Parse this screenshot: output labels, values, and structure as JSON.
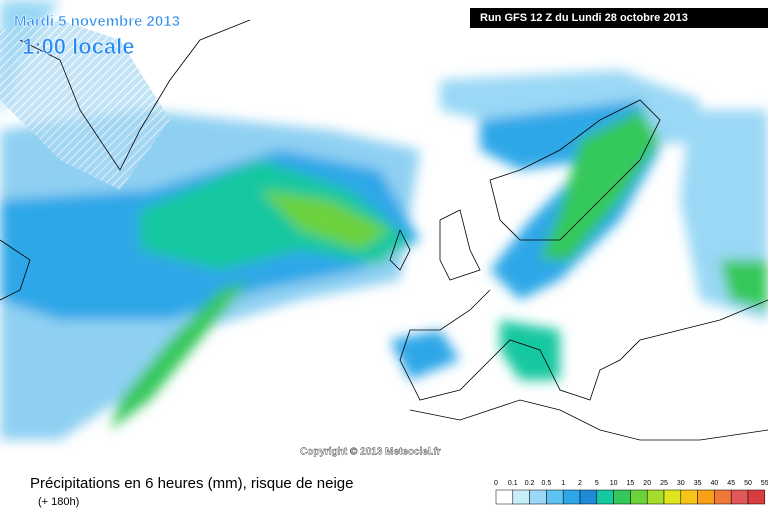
{
  "header": {
    "date": "Mardi 5 novembre 2013",
    "time": "1:00 locale",
    "run": "Run GFS 12 Z du Lundi 28 octobre 2013"
  },
  "copyright": "Copyright © 2013 Meteociel.fr",
  "legend": {
    "title": "Précipitations en 6 heures (mm), risque de neige",
    "lead": "(+ 180h)",
    "labels": [
      0,
      0.1,
      0.2,
      0.5,
      1,
      2,
      5,
      10,
      15,
      20,
      25,
      30,
      35,
      40,
      45,
      50,
      55
    ],
    "colors": [
      "#ffffff",
      "#c8eefa",
      "#9ad8f5",
      "#5ec3f0",
      "#2ea7e8",
      "#1e8ad8",
      "#16c8a0",
      "#34c85a",
      "#6cd23c",
      "#a6dc2c",
      "#e0e41c",
      "#f8c418",
      "#f8a018",
      "#f07838",
      "#e05858",
      "#d83c3c"
    ]
  }
}
